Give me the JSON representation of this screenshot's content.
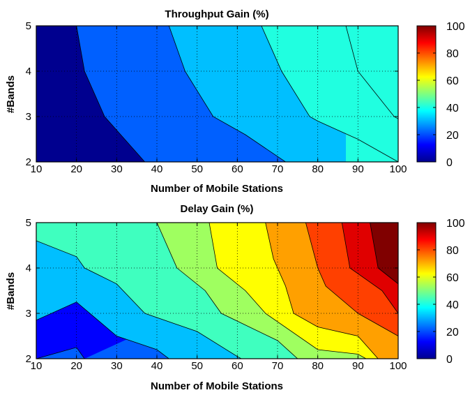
{
  "chart_data": [
    {
      "type": "contour",
      "title": "Throughput Gain (%)",
      "xlabel": "Number of Mobile Stations",
      "ylabel": "#Bands",
      "xlim": [
        10,
        100
      ],
      "ylim": [
        2,
        5
      ],
      "x_ticks": [
        "10",
        "20",
        "30",
        "40",
        "50",
        "60",
        "70",
        "80",
        "90",
        "100"
      ],
      "y_ticks": [
        "2",
        "3",
        "4",
        "5"
      ],
      "grid": true,
      "colormap": "jet",
      "clim": [
        0,
        100
      ],
      "colorbar_ticks": [
        "0",
        "20",
        "40",
        "60",
        "80",
        "100"
      ],
      "levels": [
        {
          "value": 0,
          "color": "#00008f"
        },
        {
          "value": 10,
          "color": "#0000ff"
        },
        {
          "value": 20,
          "color": "#0060ff"
        },
        {
          "value": 30,
          "color": "#00bfff"
        },
        {
          "value": 40,
          "color": "#20ffe0"
        }
      ],
      "contour_lines": [
        {
          "level": 10,
          "points": [
            [
              37,
              2
            ],
            [
              27,
              3
            ],
            [
              22,
              4
            ],
            [
              20,
              5
            ]
          ]
        },
        {
          "level": 20,
          "points": [
            [
              72,
              2
            ],
            [
              62,
              2.6
            ],
            [
              54,
              3
            ],
            [
              47,
              4
            ],
            [
              43,
              5
            ]
          ]
        },
        {
          "level": 30,
          "points": [
            [
              100,
              2
            ],
            [
              90,
              2.5
            ],
            [
              80,
              2.9
            ],
            [
              78,
              3
            ],
            [
              71,
              4
            ],
            [
              66,
              5
            ]
          ]
        },
        {
          "level": 40,
          "points": [
            [
              100,
              2.95
            ],
            [
              99,
              3
            ],
            [
              90,
              4
            ],
            [
              87,
              5
            ]
          ]
        }
      ]
    },
    {
      "type": "contour",
      "title": "Delay Gain (%)",
      "xlabel": "Number of Mobile Stations",
      "ylabel": "#Bands",
      "xlim": [
        10,
        100
      ],
      "ylim": [
        2,
        5
      ],
      "x_ticks": [
        "10",
        "20",
        "30",
        "40",
        "50",
        "60",
        "70",
        "80",
        "90",
        "100"
      ],
      "y_ticks": [
        "2",
        "3",
        "4",
        "5"
      ],
      "grid": true,
      "colormap": "jet",
      "clim": [
        0,
        100
      ],
      "colorbar_ticks": [
        "0",
        "20",
        "40",
        "60",
        "80",
        "100"
      ],
      "levels": [
        {
          "value": 10,
          "color": "#0000ff"
        },
        {
          "value": 20,
          "color": "#0060ff"
        },
        {
          "value": 30,
          "color": "#00bfff"
        },
        {
          "value": 40,
          "color": "#3fffbf"
        },
        {
          "value": 50,
          "color": "#9fff60"
        },
        {
          "value": 60,
          "color": "#ffff00"
        },
        {
          "value": 70,
          "color": "#ffa000"
        },
        {
          "value": 80,
          "color": "#ff4000"
        },
        {
          "value": 90,
          "color": "#e00000"
        },
        {
          "value": 100,
          "color": "#800000"
        }
      ],
      "contour_lines": [
        {
          "level": 10,
          "points": [
            [
              10,
              2.0
            ],
            [
              20,
              2.25
            ],
            [
              22,
              2
            ]
          ]
        },
        {
          "level": 20,
          "points": [
            [
              10,
              2.85
            ],
            [
              20,
              3.25
            ],
            [
              30,
              2.5
            ],
            [
              40,
              2.2
            ],
            [
              43,
              2
            ]
          ]
        },
        {
          "level": 30,
          "points": [
            [
              10,
              4.6
            ],
            [
              20,
              4.25
            ],
            [
              22,
              4
            ],
            [
              30,
              3.65
            ],
            [
              37,
              3
            ],
            [
              50,
              2.6
            ],
            [
              60,
              2.05
            ],
            [
              61,
              2
            ]
          ]
        },
        {
          "level": 40,
          "points": [
            [
              40,
              5
            ],
            [
              45,
              4
            ],
            [
              52,
              3.5
            ],
            [
              56,
              3
            ],
            [
              70,
              2.4
            ],
            [
              75,
              2
            ]
          ]
        },
        {
          "level": 50,
          "points": [
            [
              53,
              5
            ],
            [
              55,
              4
            ],
            [
              62,
              3.5
            ],
            [
              67,
              3
            ],
            [
              80,
              2.2
            ],
            [
              90,
              2.1
            ],
            [
              92,
              2
            ]
          ]
        },
        {
          "level": 60,
          "points": [
            [
              67,
              5
            ],
            [
              69,
              4.2
            ],
            [
              72,
              3.6
            ],
            [
              74,
              3
            ],
            [
              80,
              2.7
            ],
            [
              90,
              2.5
            ],
            [
              95,
              2
            ]
          ]
        },
        {
          "level": 70,
          "points": [
            [
              77,
              5
            ],
            [
              80,
              4
            ],
            [
              82,
              3.6
            ],
            [
              90,
              3
            ],
            [
              100,
              2.5
            ]
          ]
        },
        {
          "level": 80,
          "points": [
            [
              86,
              5
            ],
            [
              88,
              4
            ],
            [
              96,
              3.5
            ],
            [
              100,
              3
            ]
          ]
        },
        {
          "level": 90,
          "points": [
            [
              93,
              5
            ],
            [
              95,
              4
            ],
            [
              100,
              3.65
            ]
          ]
        }
      ]
    }
  ]
}
